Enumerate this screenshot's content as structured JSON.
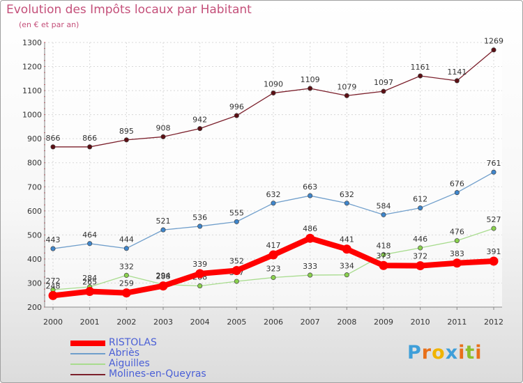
{
  "chart_data": {
    "type": "line",
    "title": "Evolution des Impôts locaux par Habitant",
    "subtitle": "(en € et par an)",
    "x": [
      "2000",
      "2001",
      "2002",
      "2003",
      "2004",
      "2005",
      "2006",
      "2007",
      "2008",
      "2009",
      "2010",
      "2011",
      "2012"
    ],
    "ylim": [
      200,
      1300
    ],
    "yticks": [
      "200",
      "300",
      "400",
      "500",
      "600",
      "700",
      "800",
      "900",
      "1000",
      "1100",
      "1200",
      "1300"
    ],
    "grid": true,
    "legend_position": "bottom-left",
    "series": [
      {
        "name": "Molines-en-Queyras",
        "color": "#7b1f2b",
        "marker": "#5c0f14",
        "values": [
          866,
          866,
          895,
          908,
          942,
          996,
          1090,
          1109,
          1079,
          1097,
          1161,
          1141,
          1269
        ]
      },
      {
        "name": "Abriès",
        "color": "#6f9ecb",
        "marker": "#3f86cc",
        "values": [
          443,
          464,
          444,
          521,
          536,
          555,
          632,
          663,
          632,
          584,
          612,
          676,
          761
        ]
      },
      {
        "name": "Aiguilles",
        "color": "#a8dc8e",
        "marker": "#8ad14e",
        "values": [
          272,
          284,
          332,
          294,
          288,
          307,
          323,
          333,
          334,
          418,
          446,
          476,
          527
        ]
      },
      {
        "name": "RISTOLAS",
        "color": "#ff0000",
        "marker": "#ff0000",
        "values": [
          248,
          265,
          259,
          288,
          339,
          352,
          417,
          486,
          441,
          373,
          372,
          383,
          391
        ]
      }
    ]
  },
  "legend": {
    "items": [
      {
        "label": "RISTOLAS",
        "color": "#ff0000"
      },
      {
        "label": "Abriès",
        "color": "#6f9ecb"
      },
      {
        "label": "Aiguilles",
        "color": "#a8dc8e"
      },
      {
        "label": "Molines-en-Queyras",
        "color": "#7b1f2b"
      }
    ]
  },
  "logo": {
    "letters": [
      "P",
      "r",
      "o",
      "x",
      "i",
      "t",
      "i"
    ],
    "colors": [
      "#3f9fd9",
      "#e8701a",
      "#f0b400",
      "#3f9fd9",
      "#e8701a",
      "#8dbf2c",
      "#e8701a"
    ]
  }
}
